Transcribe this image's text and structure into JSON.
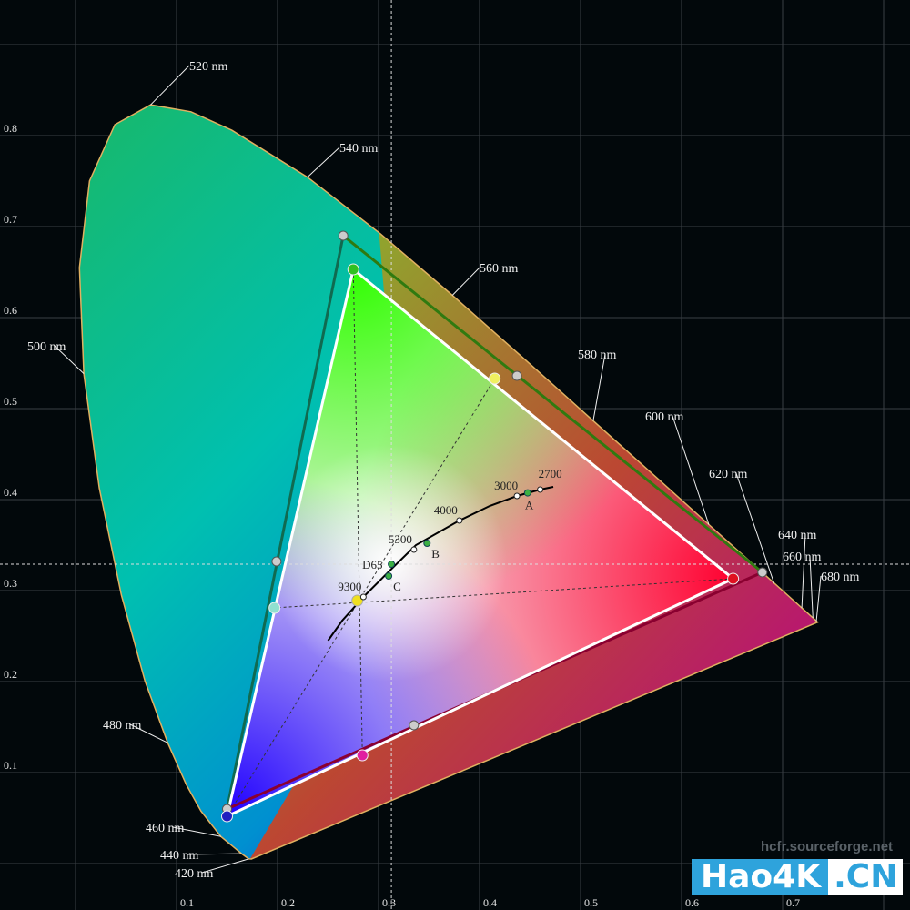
{
  "chart_data": {
    "type": "scatter",
    "title": "",
    "xlabel": "",
    "ylabel": "",
    "xlim": [
      0,
      0.8
    ],
    "ylim": [
      0,
      0.9
    ],
    "grid": true,
    "x_ticks": [
      "0.1",
      "0.2",
      "0.3",
      "0.4",
      "0.5",
      "0.6",
      "0.7"
    ],
    "y_ticks": [
      "0.1",
      "0.2",
      "0.3",
      "0.4",
      "0.5",
      "0.6",
      "0.7",
      "0.8"
    ],
    "wavelength_labels": [
      "420 nm",
      "440 nm",
      "460 nm",
      "480 nm",
      "500 nm",
      "520 nm",
      "540 nm",
      "560 nm",
      "580 nm",
      "600 nm",
      "620 nm",
      "640 nm",
      "660 nm",
      "680 nm"
    ],
    "spectral_locus": [
      [
        380,
        0.1741,
        0.005
      ],
      [
        420,
        0.1714,
        0.0051
      ],
      [
        440,
        0.1644,
        0.0109
      ],
      [
        460,
        0.144,
        0.0297
      ],
      [
        470,
        0.1241,
        0.0578
      ],
      [
        475,
        0.1096,
        0.0868
      ],
      [
        480,
        0.0913,
        0.1327
      ],
      [
        485,
        0.0687,
        0.2007
      ],
      [
        490,
        0.0454,
        0.295
      ],
      [
        495,
        0.0235,
        0.4127
      ],
      [
        500,
        0.0082,
        0.5384
      ],
      [
        505,
        0.0039,
        0.6548
      ],
      [
        510,
        0.0139,
        0.7502
      ],
      [
        515,
        0.0389,
        0.812
      ],
      [
        520,
        0.0743,
        0.8338
      ],
      [
        525,
        0.1142,
        0.8262
      ],
      [
        530,
        0.1547,
        0.8059
      ],
      [
        540,
        0.2296,
        0.7543
      ],
      [
        550,
        0.3016,
        0.6923
      ],
      [
        560,
        0.3731,
        0.6245
      ],
      [
        570,
        0.4441,
        0.5547
      ],
      [
        580,
        0.5125,
        0.4866
      ],
      [
        590,
        0.5752,
        0.4242
      ],
      [
        600,
        0.627,
        0.3725
      ],
      [
        610,
        0.6658,
        0.334
      ],
      [
        620,
        0.6915,
        0.3083
      ],
      [
        630,
        0.7079,
        0.292
      ],
      [
        640,
        0.719,
        0.2809
      ],
      [
        660,
        0.73,
        0.27
      ],
      [
        680,
        0.7334,
        0.2666
      ],
      [
        700,
        0.7347,
        0.2653
      ]
    ],
    "target_gamut": {
      "red": [
        0.68,
        0.32
      ],
      "green": [
        0.265,
        0.69
      ],
      "blue": [
        0.15,
        0.06
      ],
      "yellow": [
        0.437,
        0.536
      ],
      "cyan": [
        0.199,
        0.332
      ],
      "magenta": [
        0.335,
        0.152
      ],
      "white": [
        0.3127,
        0.329
      ]
    },
    "measured_gamut": {
      "red": [
        0.651,
        0.313
      ],
      "green": [
        0.275,
        0.653
      ],
      "blue": [
        0.15,
        0.052
      ],
      "yellow": [
        0.415,
        0.533
      ],
      "cyan": [
        0.197,
        0.281
      ],
      "magenta": [
        0.284,
        0.119
      ],
      "white": [
        0.279,
        0.289
      ]
    },
    "planckian_locus": [
      [
        0.25,
        0.245
      ],
      [
        0.264,
        0.267
      ],
      [
        0.285,
        0.293
      ],
      [
        0.313,
        0.324
      ],
      [
        0.337,
        0.35
      ],
      [
        0.38,
        0.377
      ],
      [
        0.41,
        0.393
      ],
      [
        0.437,
        0.404
      ],
      [
        0.46,
        0.411
      ],
      [
        0.473,
        0.414
      ]
    ],
    "cct_points": [
      {
        "label": "2700",
        "x": 0.46,
        "y": 0.411
      },
      {
        "label": "3000",
        "x": 0.437,
        "y": 0.404
      },
      {
        "label": "4000",
        "x": 0.38,
        "y": 0.377
      },
      {
        "label": "5300",
        "x": 0.335,
        "y": 0.345
      },
      {
        "label": "9300",
        "x": 0.285,
        "y": 0.293
      }
    ],
    "illuminants": [
      {
        "label": "D65",
        "x": 0.3127,
        "y": 0.329
      },
      {
        "label": "C",
        "x": 0.31,
        "y": 0.316
      },
      {
        "label": "B",
        "x": 0.348,
        "y": 0.352
      },
      {
        "label": "A",
        "x": 0.4476,
        "y": 0.4074
      }
    ],
    "colors": {
      "background": "#02080b",
      "measured_line": "#ffffff",
      "illuminant_marker": "#3cb043"
    }
  },
  "watermark": "hcfr.sourceforge.net",
  "logo": {
    "left": "Hao4K",
    "right": ".CN"
  }
}
